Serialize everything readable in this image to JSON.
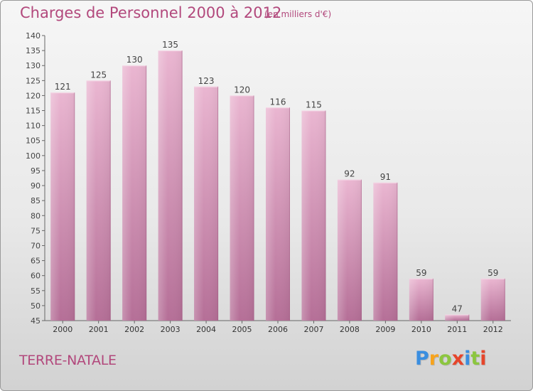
{
  "title": "Charges de Personnel 2000 à 2012",
  "subtitle": "(en milliers d'€)",
  "commune": "TERRE-NATALE",
  "logo": {
    "letters": [
      "P",
      "r",
      "o",
      "x",
      "i",
      "t",
      "i"
    ],
    "colors": [
      "#3a8ee0",
      "#f7a31c",
      "#8cc63f",
      "#e6452b",
      "#3a8ee0",
      "#8cc63f",
      "#e6452b"
    ]
  },
  "colors": {
    "bar": "#d78db4",
    "bar_light": "#e8b3cf",
    "bar_dark": "#b86e96",
    "text": "#b2487c",
    "axis": "#555555"
  },
  "chart_data": {
    "type": "bar",
    "title": "Charges de Personnel 2000 à 2012",
    "subtitle": "(en milliers d'€)",
    "categories": [
      "2000",
      "2001",
      "2002",
      "2003",
      "2004",
      "2005",
      "2006",
      "2007",
      "2008",
      "2009",
      "2010",
      "2011",
      "2012"
    ],
    "values": [
      121,
      125,
      130,
      135,
      123,
      120,
      116,
      115,
      92,
      91,
      59,
      47,
      59
    ],
    "ylim": [
      45,
      140
    ],
    "yticks": [
      45,
      50,
      55,
      60,
      65,
      70,
      75,
      80,
      85,
      90,
      95,
      100,
      105,
      110,
      115,
      120,
      125,
      130,
      135,
      140
    ],
    "data_labels": [
      "121",
      "125",
      "130",
      "135",
      "123",
      "120",
      "116",
      "115",
      "92",
      "91",
      "59",
      "47",
      "59"
    ],
    "grid": false,
    "legend": "none"
  }
}
